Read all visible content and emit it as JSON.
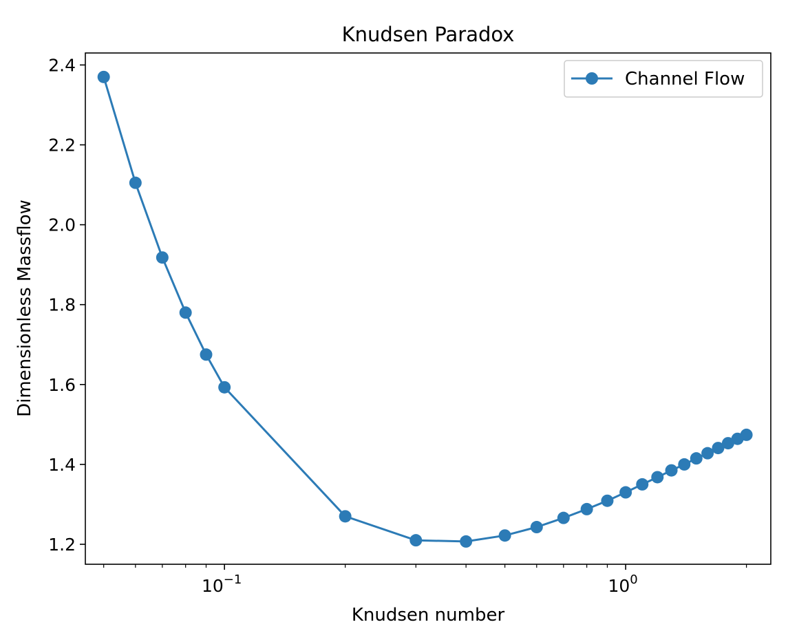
{
  "chart_data": {
    "type": "line",
    "title": "Knudsen Paradox",
    "xlabel": "Knudsen number",
    "ylabel": "Dimensionless Massflow",
    "xscale": "log",
    "xlim": [
      0.045,
      2.3
    ],
    "ylim": [
      1.15,
      2.43
    ],
    "x_ticks": [
      {
        "value": 0.1,
        "base": "10",
        "exp": "−1"
      },
      {
        "value": 1,
        "base": "10",
        "exp": "0"
      }
    ],
    "y_ticks": [
      {
        "value": 1.2,
        "label": "1.2"
      },
      {
        "value": 1.4,
        "label": "1.4"
      },
      {
        "value": 1.6,
        "label": "1.6"
      },
      {
        "value": 1.8,
        "label": "1.8"
      },
      {
        "value": 2.0,
        "label": "2.0"
      },
      {
        "value": 2.2,
        "label": "2.2"
      },
      {
        "value": 2.4,
        "label": "2.4"
      }
    ],
    "grid": false,
    "legend_position": "top-right",
    "series": [
      {
        "name": "Channel Flow",
        "color": "#2c7bb6",
        "marker": "circle",
        "points": [
          {
            "x": 0.05,
            "y": 2.37
          },
          {
            "x": 0.06,
            "y": 2.105
          },
          {
            "x": 0.07,
            "y": 1.918
          },
          {
            "x": 0.08,
            "y": 1.78
          },
          {
            "x": 0.09,
            "y": 1.675
          },
          {
            "x": 0.1,
            "y": 1.593
          },
          {
            "x": 0.2,
            "y": 1.27
          },
          {
            "x": 0.3,
            "y": 1.21
          },
          {
            "x": 0.4,
            "y": 1.207
          },
          {
            "x": 0.5,
            "y": 1.222
          },
          {
            "x": 0.6,
            "y": 1.243
          },
          {
            "x": 0.7,
            "y": 1.266
          },
          {
            "x": 0.8,
            "y": 1.288
          },
          {
            "x": 0.9,
            "y": 1.309
          },
          {
            "x": 1.0,
            "y": 1.33
          },
          {
            "x": 1.1,
            "y": 1.35
          },
          {
            "x": 1.2,
            "y": 1.368
          },
          {
            "x": 1.3,
            "y": 1.385
          },
          {
            "x": 1.4,
            "y": 1.4
          },
          {
            "x": 1.5,
            "y": 1.415
          },
          {
            "x": 1.6,
            "y": 1.428
          },
          {
            "x": 1.7,
            "y": 1.441
          },
          {
            "x": 1.8,
            "y": 1.453
          },
          {
            "x": 1.9,
            "y": 1.464
          },
          {
            "x": 2.0,
            "y": 1.474
          }
        ]
      }
    ]
  }
}
